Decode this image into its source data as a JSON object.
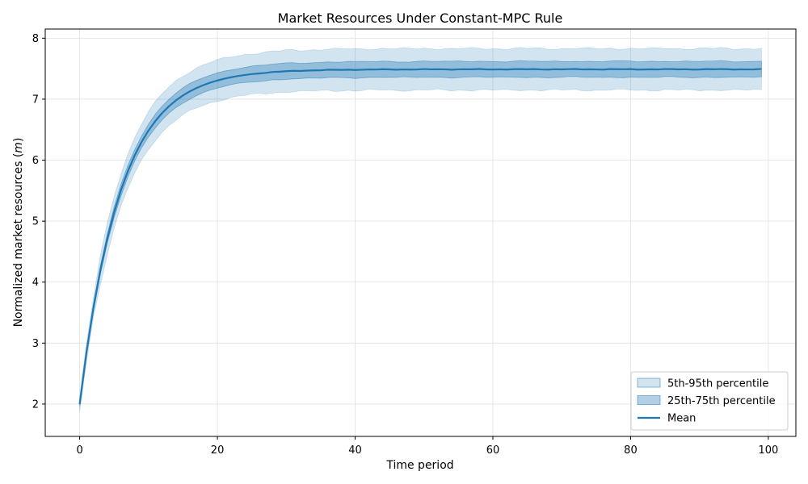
{
  "chart_data": {
    "type": "area",
    "title": "Market Resources Under Constant-MPC Rule",
    "xlabel": "Time period",
    "ylabel": "Normalized market resources (",
    "ylabel_symbol": "m",
    "ylabel_suffix": ")",
    "xlim": [
      -5,
      104
    ],
    "ylim": [
      1.47,
      8.15
    ],
    "xticks": [
      0,
      20,
      40,
      60,
      80,
      100
    ],
    "yticks": [
      2,
      3,
      4,
      5,
      6,
      7,
      8
    ],
    "grid": true,
    "legend_position": "bottom-right",
    "legend": [
      "5th-95th percentile",
      "25th-75th percentile",
      "Mean"
    ],
    "model": {
      "start": 2.0,
      "steady_state": 7.49,
      "decay": 0.17,
      "n_periods": 100,
      "band_5_95_halfwidth": 0.34,
      "band_25_75_halfwidth": 0.13
    },
    "series": [
      {
        "name": "5th-95th percentile",
        "kind": "band",
        "color": "#1f77b4",
        "opacity": 0.2
      },
      {
        "name": "25th-75th percentile",
        "kind": "band",
        "color": "#1f77b4",
        "opacity": 0.35
      },
      {
        "name": "Mean",
        "kind": "line",
        "color": "#1f77b4"
      }
    ]
  }
}
